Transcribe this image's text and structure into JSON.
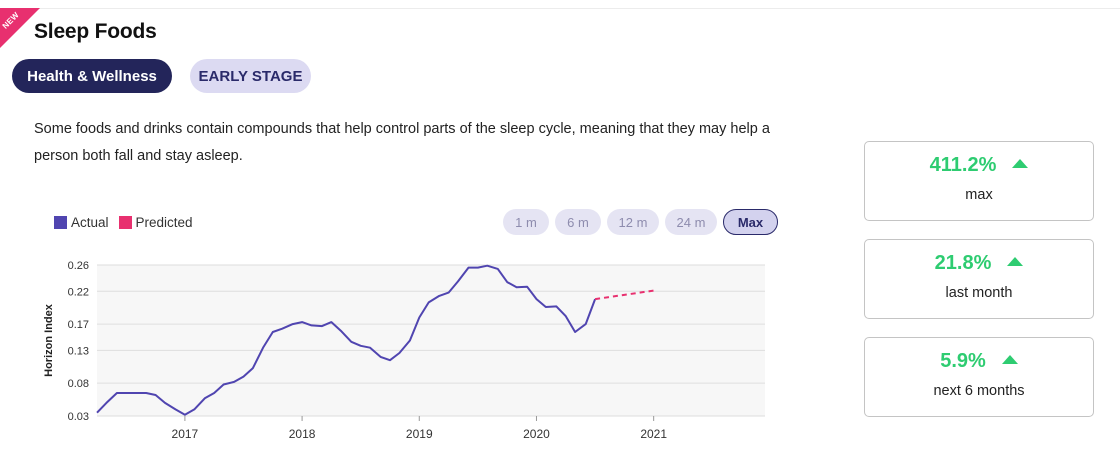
{
  "badge": "NEW",
  "title": "Sleep Foods",
  "category": "Health & Wellness",
  "stage": "EARLY STAGE",
  "description": "Some foods and drinks contain compounds that help control parts of the sleep cycle, meaning that they may help a person both fall and stay asleep.",
  "legend": {
    "actual": "Actual",
    "predicted": "Predicted"
  },
  "colors": {
    "actual": "#5045b0",
    "predicted": "#e8306f",
    "growth": "#2ecc71",
    "category_pill": "#23255a"
  },
  "ranges": [
    "1 m",
    "6 m",
    "12 m",
    "24 m",
    "Max"
  ],
  "active_range": "Max",
  "stats": [
    {
      "value": "411.2%",
      "label": "max",
      "trend": "up"
    },
    {
      "value": "21.8%",
      "label": "last month",
      "trend": "up"
    },
    {
      "value": "5.9%",
      "label": "next 6 months",
      "trend": "up"
    }
  ],
  "chart_data": {
    "type": "line",
    "ylabel": "Horizon Index",
    "xlabel": "",
    "yticks": [
      "0.26",
      "0.22",
      "0.17",
      "0.13",
      "0.08",
      "0.03"
    ],
    "ylim": [
      0.03,
      0.26
    ],
    "xticks": [
      "2017",
      "2018",
      "2019",
      "2020",
      "2021"
    ],
    "xlim": [
      2016.25,
      2021.95
    ],
    "grid": true,
    "legend_position": "top-left",
    "series": [
      {
        "name": "Actual",
        "x": [
          2016.25,
          2016.33,
          2016.42,
          2016.5,
          2016.58,
          2016.67,
          2016.75,
          2016.83,
          2016.92,
          2017.0,
          2017.08,
          2017.17,
          2017.25,
          2017.33,
          2017.42,
          2017.5,
          2017.58,
          2017.67,
          2017.75,
          2017.83,
          2017.92,
          2018.0,
          2018.08,
          2018.17,
          2018.25,
          2018.33,
          2018.42,
          2018.5,
          2018.58,
          2018.67,
          2018.75,
          2018.83,
          2018.92,
          2019.0,
          2019.08,
          2019.17,
          2019.25,
          2019.33,
          2019.42,
          2019.5,
          2019.58,
          2019.67,
          2019.75,
          2019.83,
          2019.92,
          2020.0,
          2020.08,
          2020.17,
          2020.25,
          2020.33,
          2020.42,
          2020.5
        ],
        "y": [
          0.035,
          0.05,
          0.065,
          0.065,
          0.065,
          0.065,
          0.062,
          0.05,
          0.04,
          0.032,
          0.04,
          0.057,
          0.065,
          0.078,
          0.082,
          0.09,
          0.103,
          0.135,
          0.158,
          0.163,
          0.17,
          0.173,
          0.168,
          0.167,
          0.173,
          0.16,
          0.143,
          0.137,
          0.134,
          0.12,
          0.115,
          0.126,
          0.145,
          0.18,
          0.203,
          0.213,
          0.218,
          0.235,
          0.256,
          0.256,
          0.259,
          0.254,
          0.234,
          0.226,
          0.227,
          0.208,
          0.196,
          0.197,
          0.182,
          0.158,
          0.17,
          0.208
        ]
      },
      {
        "name": "Predicted",
        "x": [
          2020.5,
          2021.0
        ],
        "y": [
          0.208,
          0.221
        ]
      }
    ]
  }
}
